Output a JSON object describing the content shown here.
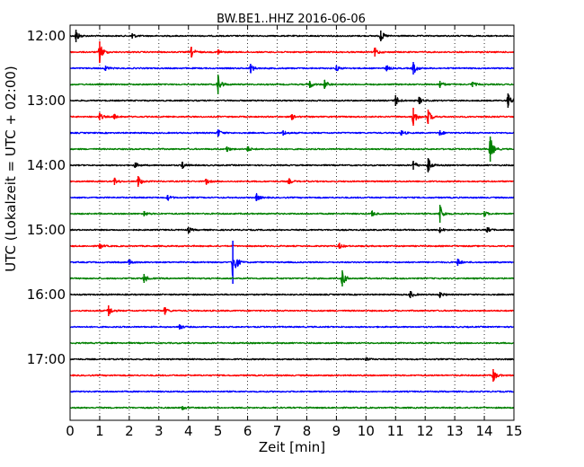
{
  "chart_data": {
    "type": "line",
    "title": "BW.BE1..HHZ 2016-06-06",
    "xlabel": "Zeit  [min]",
    "ylabel": "UTC (Lokalzeit = UTC + 02:00)",
    "xlim": [
      0,
      15
    ],
    "x_ticks": [
      "0",
      "1",
      "2",
      "3",
      "4",
      "5",
      "6",
      "7",
      "8",
      "9",
      "10",
      "11",
      "12",
      "13",
      "14",
      "15"
    ],
    "y_tick_labels": [
      "12:00",
      "13:00",
      "14:00",
      "15:00",
      "16:00",
      "17:00"
    ],
    "grid": true,
    "line_colors": [
      "#000000",
      "#ff0000",
      "#0000ff",
      "#008000"
    ],
    "series": [
      {
        "start": "12:00",
        "color": "#000000",
        "events": [
          [
            0.2,
            7
          ],
          [
            2.1,
            3
          ],
          [
            10.5,
            6
          ]
        ]
      },
      {
        "start": "12:15",
        "color": "#ff0000",
        "events": [
          [
            1.0,
            12
          ],
          [
            4.1,
            6
          ],
          [
            5.0,
            3
          ],
          [
            10.3,
            5
          ]
        ]
      },
      {
        "start": "12:30",
        "color": "#0000ff",
        "events": [
          [
            1.2,
            3
          ],
          [
            6.1,
            5
          ],
          [
            9.0,
            3
          ],
          [
            10.7,
            3
          ],
          [
            11.6,
            7
          ]
        ]
      },
      {
        "start": "12:45",
        "color": "#008000",
        "events": [
          [
            5.0,
            11
          ],
          [
            8.1,
            4
          ],
          [
            8.6,
            5
          ],
          [
            12.5,
            4
          ],
          [
            13.6,
            3
          ]
        ]
      },
      {
        "start": "13:00",
        "color": "#000000",
        "events": [
          [
            11.0,
            6
          ],
          [
            11.8,
            4
          ],
          [
            14.8,
            8
          ]
        ]
      },
      {
        "start": "13:15",
        "color": "#ff0000",
        "events": [
          [
            1.0,
            4
          ],
          [
            1.5,
            3
          ],
          [
            7.5,
            3
          ],
          [
            11.6,
            10
          ],
          [
            12.1,
            8
          ]
        ]
      },
      {
        "start": "13:30",
        "color": "#0000ff",
        "events": [
          [
            5.0,
            4
          ],
          [
            7.2,
            3
          ],
          [
            11.2,
            3
          ],
          [
            12.5,
            3
          ]
        ]
      },
      {
        "start": "13:45",
        "color": "#008000",
        "events": [
          [
            5.3,
            3
          ],
          [
            6.0,
            3
          ],
          [
            14.2,
            14
          ]
        ]
      },
      {
        "start": "14:00",
        "color": "#000000",
        "events": [
          [
            2.2,
            3
          ],
          [
            3.8,
            4
          ],
          [
            11.6,
            5
          ],
          [
            12.1,
            8
          ]
        ]
      },
      {
        "start": "14:15",
        "color": "#ff0000",
        "events": [
          [
            1.5,
            4
          ],
          [
            2.3,
            6
          ],
          [
            4.6,
            3
          ],
          [
            7.4,
            3
          ]
        ]
      },
      {
        "start": "14:30",
        "color": "#0000ff",
        "events": [
          [
            3.3,
            3
          ],
          [
            6.3,
            4
          ]
        ]
      },
      {
        "start": "14:45",
        "color": "#008000",
        "events": [
          [
            2.5,
            3
          ],
          [
            10.2,
            3
          ],
          [
            12.5,
            10
          ],
          [
            14.0,
            3
          ]
        ]
      },
      {
        "start": "15:00",
        "color": "#000000",
        "events": [
          [
            4.0,
            3
          ],
          [
            12.5,
            3
          ],
          [
            14.1,
            3
          ]
        ]
      },
      {
        "start": "15:15",
        "color": "#ff0000",
        "events": [
          [
            1.0,
            3
          ],
          [
            9.1,
            3
          ]
        ]
      },
      {
        "start": "15:30",
        "color": "#0000ff",
        "events": [
          [
            2.0,
            3
          ],
          [
            5.5,
            24
          ],
          [
            13.1,
            4
          ]
        ]
      },
      {
        "start": "15:45",
        "color": "#008000",
        "events": [
          [
            2.5,
            5
          ],
          [
            9.2,
            9
          ]
        ]
      },
      {
        "start": "16:00",
        "color": "#000000",
        "events": [
          [
            11.5,
            4
          ],
          [
            12.5,
            3
          ]
        ]
      },
      {
        "start": "16:15",
        "color": "#ff0000",
        "events": [
          [
            1.3,
            6
          ],
          [
            3.2,
            4
          ]
        ]
      },
      {
        "start": "16:30",
        "color": "#0000ff",
        "events": [
          [
            3.7,
            3
          ]
        ]
      },
      {
        "start": "16:45",
        "color": "#008000",
        "events": []
      },
      {
        "start": "17:00",
        "color": "#000000",
        "events": [
          [
            10.0,
            2
          ]
        ]
      },
      {
        "start": "17:15",
        "color": "#ff0000",
        "events": [
          [
            14.3,
            7
          ]
        ]
      },
      {
        "start": "17:30",
        "color": "#0000ff",
        "events": []
      },
      {
        "start": "17:45",
        "color": "#008000",
        "events": [
          [
            3.8,
            2
          ]
        ]
      }
    ]
  }
}
